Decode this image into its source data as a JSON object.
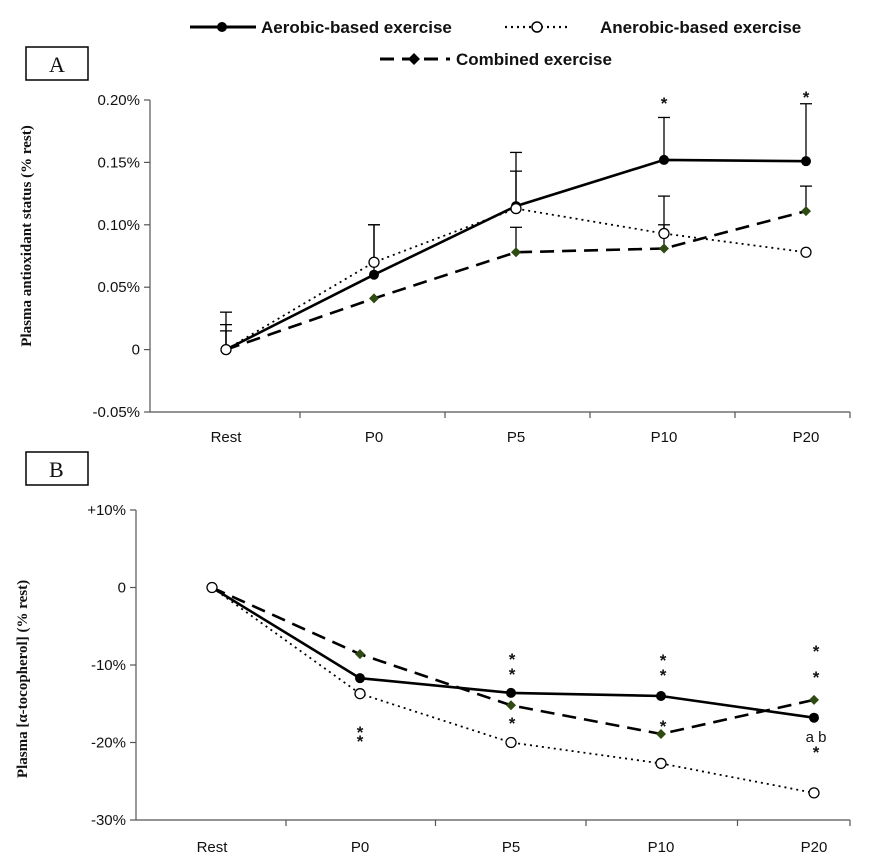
{
  "legend": [
    {
      "label": "Aerobic-based exercise",
      "style": "solid",
      "marker": "filled-circle"
    },
    {
      "label": "Anerobic-based exercise",
      "style": "dotted",
      "marker": "open-circle"
    },
    {
      "label": "Combined exercise",
      "style": "dashed",
      "marker": "diamond"
    }
  ],
  "colors": {
    "line": "#000000",
    "diamond_fill": "#2f4a12"
  },
  "chart_data": [
    {
      "panel": "A",
      "type": "line",
      "ylabel": "Plasma antioxidant status (% rest)",
      "categories": [
        "Rest",
        "P0",
        "P5",
        "P10",
        "P20"
      ],
      "ylim": [
        -0.05,
        0.2
      ],
      "yticks": [
        -0.05,
        0,
        0.05,
        0.1,
        0.15,
        0.2
      ],
      "ytick_labels": [
        "-0.05%",
        "0",
        "0.05%",
        "0.10%",
        "0.15%",
        "0.20%"
      ],
      "series": [
        {
          "name": "Aerobic-based exercise",
          "values": [
            0,
            0.06,
            0.115,
            0.152,
            0.151
          ],
          "error_upper": [
            0.02,
            0.1,
            0.158,
            0.186,
            0.197
          ]
        },
        {
          "name": "Anerobic-based exercise",
          "values": [
            0,
            0.07,
            0.113,
            0.093,
            0.078
          ],
          "error_upper": [
            0.03,
            0.1,
            0.143,
            0.123,
            null
          ]
        },
        {
          "name": "Combined exercise",
          "values": [
            0,
            0.041,
            0.078,
            0.081,
            0.111
          ],
          "error_upper": [
            0.015,
            null,
            0.098,
            0.1,
            0.131
          ]
        }
      ],
      "annotations": [
        {
          "category": "P10",
          "text": "*"
        },
        {
          "category": "P20",
          "text": "*"
        }
      ]
    },
    {
      "panel": "B",
      "type": "line",
      "ylabel": "Plasma [α-tocopherol] (% rest)",
      "categories": [
        "Rest",
        "P0",
        "P5",
        "P10",
        "P20"
      ],
      "ylim": [
        -30,
        10
      ],
      "yticks": [
        -30,
        -20,
        -10,
        0,
        10
      ],
      "ytick_labels": [
        "-30%",
        "-20%",
        "-10%",
        "0",
        "+10%"
      ],
      "series": [
        {
          "name": "Aerobic-based exercise",
          "values": [
            0,
            -11.7,
            -13.6,
            -14,
            -16.8
          ]
        },
        {
          "name": "Anerobic-based exercise",
          "values": [
            0,
            -13.7,
            -20,
            -22.7,
            -26.5
          ]
        },
        {
          "name": "Combined exercise",
          "values": [
            0,
            -8.6,
            -15.2,
            -18.9,
            -14.5
          ]
        }
      ],
      "annotations": [
        {
          "category": "P0",
          "text": "*"
        },
        {
          "category": "P0",
          "text": "*"
        },
        {
          "category": "P5",
          "text": "*"
        },
        {
          "category": "P5",
          "text": "*"
        },
        {
          "category": "P5",
          "text": "*"
        },
        {
          "category": "P10",
          "text": "*"
        },
        {
          "category": "P10",
          "text": "*"
        },
        {
          "category": "P10",
          "text": "*"
        },
        {
          "category": "P20",
          "text": "*"
        },
        {
          "category": "P20",
          "text": "*"
        },
        {
          "category": "P20",
          "text": "a b"
        },
        {
          "category": "P20",
          "text": "*"
        }
      ]
    }
  ]
}
